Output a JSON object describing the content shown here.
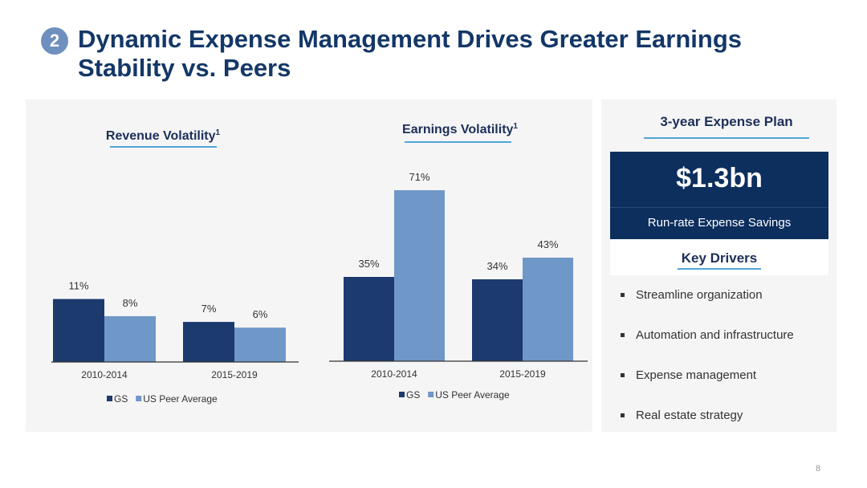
{
  "slide": {
    "badge": "2",
    "title": "Dynamic Expense Management Drives Greater Earnings Stability vs. Peers",
    "page_number": "8"
  },
  "colors": {
    "gs": "#1c3a6e",
    "peer": "#6f97c8",
    "navy": "#0d2f5e",
    "accent": "#4fa6d3"
  },
  "chart_data": [
    {
      "type": "bar",
      "title": "Revenue Volatility",
      "title_superscript": "1",
      "categories": [
        "2010-2014",
        "2015-2019"
      ],
      "series": [
        {
          "name": "GS",
          "values": [
            11,
            7
          ],
          "labels": [
            "11%",
            "7%"
          ]
        },
        {
          "name": "US Peer Average",
          "values": [
            8,
            6
          ],
          "labels": [
            "8%",
            "6%"
          ]
        }
      ],
      "ylim": [
        0,
        30
      ],
      "grid": false,
      "legend": "bottom"
    },
    {
      "type": "bar",
      "title": "Earnings Volatility",
      "title_superscript": "1",
      "categories": [
        "2010-2014",
        "2015-2019"
      ],
      "series": [
        {
          "name": "GS",
          "values": [
            35,
            34
          ],
          "labels": [
            "35%",
            "34%"
          ]
        },
        {
          "name": "US Peer Average",
          "values": [
            71,
            43
          ],
          "labels": [
            "71%",
            "43%"
          ]
        }
      ],
      "ylim": [
        0,
        71
      ],
      "grid": false,
      "legend": "bottom"
    }
  ],
  "expense_plan": {
    "title": "3-year Expense Plan",
    "amount": "$1.3bn",
    "amount_label": "Run-rate Expense Savings",
    "drivers_title": "Key Drivers",
    "drivers": [
      "Streamline organization",
      "Automation and infrastructure",
      "Expense management",
      "Real estate strategy"
    ]
  }
}
